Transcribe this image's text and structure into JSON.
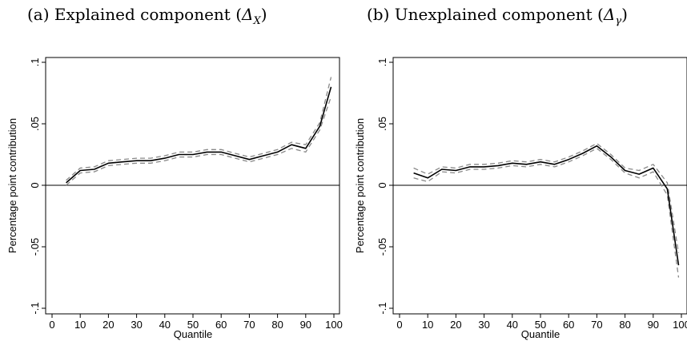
{
  "panels": [
    {
      "label": "(a) Explained component (",
      "symbol": "Δ",
      "sub": "X",
      "close": ")"
    },
    {
      "label": "(b) Unexplained component (",
      "symbol": "Δ",
      "sub": "γ",
      "close": ")"
    }
  ],
  "chart_data": [
    {
      "type": "line",
      "title": "(a) Explained component (ΔX)",
      "xlabel": "Quantile",
      "ylabel": "Percentage point contribution",
      "xlim": [
        0,
        100
      ],
      "ylim": [
        -0.1,
        0.1
      ],
      "xticks": [
        "0",
        "10",
        "20",
        "30",
        "40",
        "50",
        "60",
        "70",
        "80",
        "90",
        "100"
      ],
      "yticks": [
        "-.1",
        "-.05",
        "0",
        ".05",
        ".1"
      ],
      "grid": false,
      "reference_line_y": 0,
      "x": [
        5,
        10,
        15,
        20,
        25,
        30,
        35,
        40,
        45,
        50,
        55,
        60,
        65,
        70,
        75,
        80,
        85,
        90,
        95,
        99
      ],
      "series": [
        {
          "style": "solid",
          "values": [
            0.002,
            0.012,
            0.013,
            0.018,
            0.019,
            0.02,
            0.02,
            0.022,
            0.025,
            0.025,
            0.027,
            0.027,
            0.024,
            0.021,
            0.024,
            0.027,
            0.033,
            0.03,
            0.048,
            0.08
          ]
        },
        {
          "style": "dashed",
          "values": [
            0.0,
            0.01,
            0.011,
            0.016,
            0.017,
            0.018,
            0.018,
            0.02,
            0.023,
            0.023,
            0.025,
            0.025,
            0.022,
            0.019,
            0.022,
            0.025,
            0.03,
            0.027,
            0.045,
            0.072
          ]
        },
        {
          "style": "dashed",
          "values": [
            0.004,
            0.014,
            0.015,
            0.02,
            0.021,
            0.022,
            0.022,
            0.024,
            0.027,
            0.027,
            0.029,
            0.029,
            0.026,
            0.023,
            0.026,
            0.029,
            0.035,
            0.033,
            0.051,
            0.088
          ]
        }
      ]
    },
    {
      "type": "line",
      "title": "(b) Unexplained component (Δγ)",
      "xlabel": "Quantile",
      "ylabel": "Percentage point contribution",
      "xlim": [
        0,
        100
      ],
      "ylim": [
        -0.1,
        0.1
      ],
      "xticks": [
        "0",
        "10",
        "20",
        "30",
        "40",
        "50",
        "60",
        "70",
        "80",
        "90",
        "100"
      ],
      "yticks": [
        "-.1",
        "-.05",
        "0",
        ".05",
        ".1"
      ],
      "grid": false,
      "reference_line_y": 0,
      "x": [
        5,
        10,
        15,
        20,
        25,
        30,
        35,
        40,
        45,
        50,
        55,
        60,
        65,
        70,
        75,
        80,
        85,
        90,
        95,
        99
      ],
      "series": [
        {
          "style": "solid",
          "values": [
            0.01,
            0.006,
            0.013,
            0.012,
            0.015,
            0.015,
            0.016,
            0.018,
            0.017,
            0.019,
            0.017,
            0.021,
            0.026,
            0.032,
            0.023,
            0.012,
            0.009,
            0.014,
            -0.003,
            -0.065
          ]
        },
        {
          "style": "dashed",
          "values": [
            0.006,
            0.003,
            0.011,
            0.01,
            0.013,
            0.013,
            0.014,
            0.016,
            0.015,
            0.017,
            0.015,
            0.019,
            0.024,
            0.03,
            0.021,
            0.01,
            0.006,
            0.011,
            -0.008,
            -0.075
          ]
        },
        {
          "style": "dashed",
          "values": [
            0.014,
            0.009,
            0.015,
            0.014,
            0.017,
            0.017,
            0.018,
            0.02,
            0.019,
            0.021,
            0.019,
            0.023,
            0.028,
            0.034,
            0.025,
            0.014,
            0.012,
            0.017,
            0.002,
            -0.055
          ]
        }
      ]
    }
  ]
}
